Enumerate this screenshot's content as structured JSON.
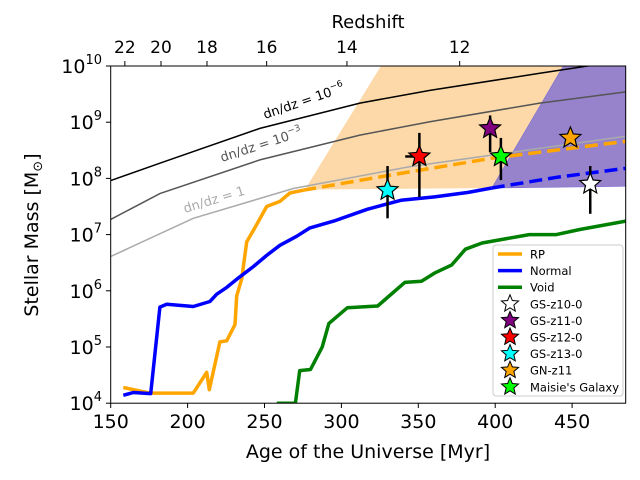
{
  "chart_data": {
    "type": "line",
    "xlabel": "Age of the Universe [Myr]",
    "ylabel_main": "Stellar Mass [M",
    "ylabel_sub": "⊙",
    "ylabel_close": "]",
    "top_axis_label": "Redshift",
    "xlim": [
      150,
      485
    ],
    "ylim_log10": [
      4,
      10
    ],
    "yscale": "log",
    "xticks": [
      150,
      200,
      250,
      300,
      350,
      400,
      450
    ],
    "xtick_labels": [
      "150",
      "200",
      "250",
      "300",
      "350",
      "400",
      "450"
    ],
    "ytick_base": "10",
    "yticks_log10": [
      4,
      5,
      6,
      7,
      8,
      9,
      10
    ],
    "ytick_exponents": [
      "4",
      "5",
      "6",
      "7",
      "8",
      "9",
      "10"
    ],
    "top_ticks": [
      {
        "label": "22",
        "age": 159.2
      },
      {
        "label": "20",
        "age": 182.7
      },
      {
        "label": "18",
        "age": 212.6
      },
      {
        "label": "16",
        "age": 251.4
      },
      {
        "label": "14",
        "age": 303.6
      },
      {
        "label": "12",
        "age": 376.9
      }
    ],
    "series": [
      {
        "name": "RP",
        "color": "#ffa500",
        "log10_mass": [
          [
            158.2,
            4.28
          ],
          [
            175.5,
            4.18
          ],
          [
            203.7,
            4.18
          ],
          [
            212.4,
            4.55
          ],
          [
            214.1,
            4.24
          ],
          [
            221.0,
            5.09
          ],
          [
            225.4,
            5.11
          ],
          [
            230.8,
            5.4
          ],
          [
            231.9,
            5.91
          ],
          [
            235.2,
            6.21
          ],
          [
            238.4,
            6.87
          ],
          [
            244.9,
            7.18
          ],
          [
            251.4,
            7.5
          ],
          [
            260.0,
            7.59
          ],
          [
            266.5,
            7.74
          ],
          [
            275.2,
            7.79
          ]
        ],
        "extrapolation": [
          [
            275.2,
            7.79
          ],
          [
            330,
            8.05
          ],
          [
            398,
            8.36
          ],
          [
            485,
            8.66
          ]
        ]
      },
      {
        "name": "Normal",
        "color": "#0000ff",
        "log10_mass": [
          [
            158.2,
            4.14
          ],
          [
            164.7,
            4.19
          ],
          [
            176.0,
            4.17
          ],
          [
            182.0,
            5.71
          ],
          [
            186.4,
            5.76
          ],
          [
            203.7,
            5.72
          ],
          [
            214.5,
            5.81
          ],
          [
            218.9,
            5.94
          ],
          [
            225.4,
            6.06
          ],
          [
            234.0,
            6.25
          ],
          [
            242.7,
            6.43
          ],
          [
            251.4,
            6.63
          ],
          [
            260.0,
            6.81
          ],
          [
            270.9,
            6.97
          ],
          [
            279.5,
            7.12
          ],
          [
            295.0,
            7.24
          ],
          [
            316.8,
            7.45
          ],
          [
            338.7,
            7.61
          ],
          [
            360.6,
            7.67
          ],
          [
            382.5,
            7.75
          ],
          [
            397.8,
            7.83
          ]
        ],
        "extrapolation": [
          [
            397.8,
            7.83
          ],
          [
            440,
            8.02
          ],
          [
            485,
            8.18
          ]
        ]
      },
      {
        "name": "Void",
        "color": "#008000",
        "log10_mass": [
          [
            258.0,
            4.0
          ],
          [
            270.1,
            4.0
          ],
          [
            272.9,
            4.58
          ],
          [
            279.9,
            4.6
          ],
          [
            287.5,
            5.0
          ],
          [
            291.9,
            5.42
          ],
          [
            303.9,
            5.7
          ],
          [
            323.6,
            5.73
          ],
          [
            330.3,
            5.89
          ],
          [
            341.2,
            6.15
          ],
          [
            352.1,
            6.17
          ],
          [
            360.9,
            6.32
          ],
          [
            371.8,
            6.46
          ],
          [
            380.6,
            6.74
          ],
          [
            391.5,
            6.85
          ],
          [
            422.2,
            7.0
          ],
          [
            439.7,
            7.0
          ],
          [
            455.0,
            7.09
          ],
          [
            485,
            7.24
          ]
        ]
      }
    ],
    "dndz_curves": [
      {
        "label": "dn/dz = 10",
        "exp": "−6",
        "color": "#000000",
        "log10_mass": [
          [
            150,
            7.96
          ],
          [
            182,
            8.27
          ],
          [
            247,
            8.89
          ],
          [
            312,
            9.34
          ],
          [
            358,
            9.57
          ],
          [
            429,
            9.87
          ],
          [
            460,
            10.0
          ],
          [
            485,
            10.1
          ]
        ]
      },
      {
        "label": "dn/dz = 10",
        "exp": "−3",
        "color": "#555555",
        "log10_mass": [
          [
            150,
            7.27
          ],
          [
            182,
            7.73
          ],
          [
            247,
            8.33
          ],
          [
            312,
            8.77
          ],
          [
            358,
            9.01
          ],
          [
            429,
            9.34
          ],
          [
            485,
            9.54
          ]
        ]
      },
      {
        "label": "dn/dz = 1",
        "exp": "",
        "color": "#aaaaaa",
        "log10_mass": [
          [
            150,
            6.61
          ],
          [
            203.7,
            7.29
          ],
          [
            268.7,
            7.82
          ],
          [
            344.6,
            8.21
          ],
          [
            420,
            8.5
          ],
          [
            485,
            8.75
          ]
        ]
      }
    ],
    "shaded_regions": [
      {
        "name": "RP region",
        "color": "#fdd9a9",
        "polygon": [
          [
            276.3,
            7.8
          ],
          [
            325.7,
            10
          ],
          [
            444.3,
            10
          ],
          [
            397.8,
            7.83
          ]
        ]
      },
      {
        "name": "Normal region",
        "color": "#9683cc",
        "polygon": [
          [
            397.8,
            7.83
          ],
          [
            444.3,
            10
          ],
          [
            485,
            10
          ],
          [
            485,
            7.86
          ]
        ]
      }
    ],
    "observations": [
      {
        "name": "GS-z10-0",
        "color": "#ffffff",
        "age": 461.8,
        "log10_mass": 7.9,
        "err": [
          7.37,
          8.22
        ]
      },
      {
        "name": "GS-z11-0",
        "color": "#800080",
        "age": 396.7,
        "log10_mass": 8.89,
        "err": [
          8.47,
          9.12
        ]
      },
      {
        "name": "GS-z12-0",
        "color": "#ff0000",
        "age": 350.7,
        "log10_mass": 8.39,
        "err": [
          7.67,
          8.81
        ],
        "xerr_left": 341.5
      },
      {
        "name": "GS-z13-0",
        "color": "#00ffff",
        "age": 330.0,
        "log10_mass": 7.79,
        "err": [
          7.29,
          8.22
        ]
      },
      {
        "name": "GN-z11",
        "color": "#ffa500",
        "age": 448.9,
        "log10_mass": 8.72,
        "err": null
      },
      {
        "name": "Maisie's Galaxy",
        "color": "#00ff00",
        "age": 403.7,
        "log10_mass": 8.39,
        "err": [
          7.97,
          8.72
        ]
      }
    ],
    "legend": {
      "placement": "lower-right",
      "entries": [
        "RP",
        "Normal",
        "Void",
        "GS-z10-0",
        "GS-z11-0",
        "GS-z12-0",
        "GS-z13-0",
        "GN-z11",
        "Maisie's Galaxy"
      ]
    },
    "grid": false
  }
}
